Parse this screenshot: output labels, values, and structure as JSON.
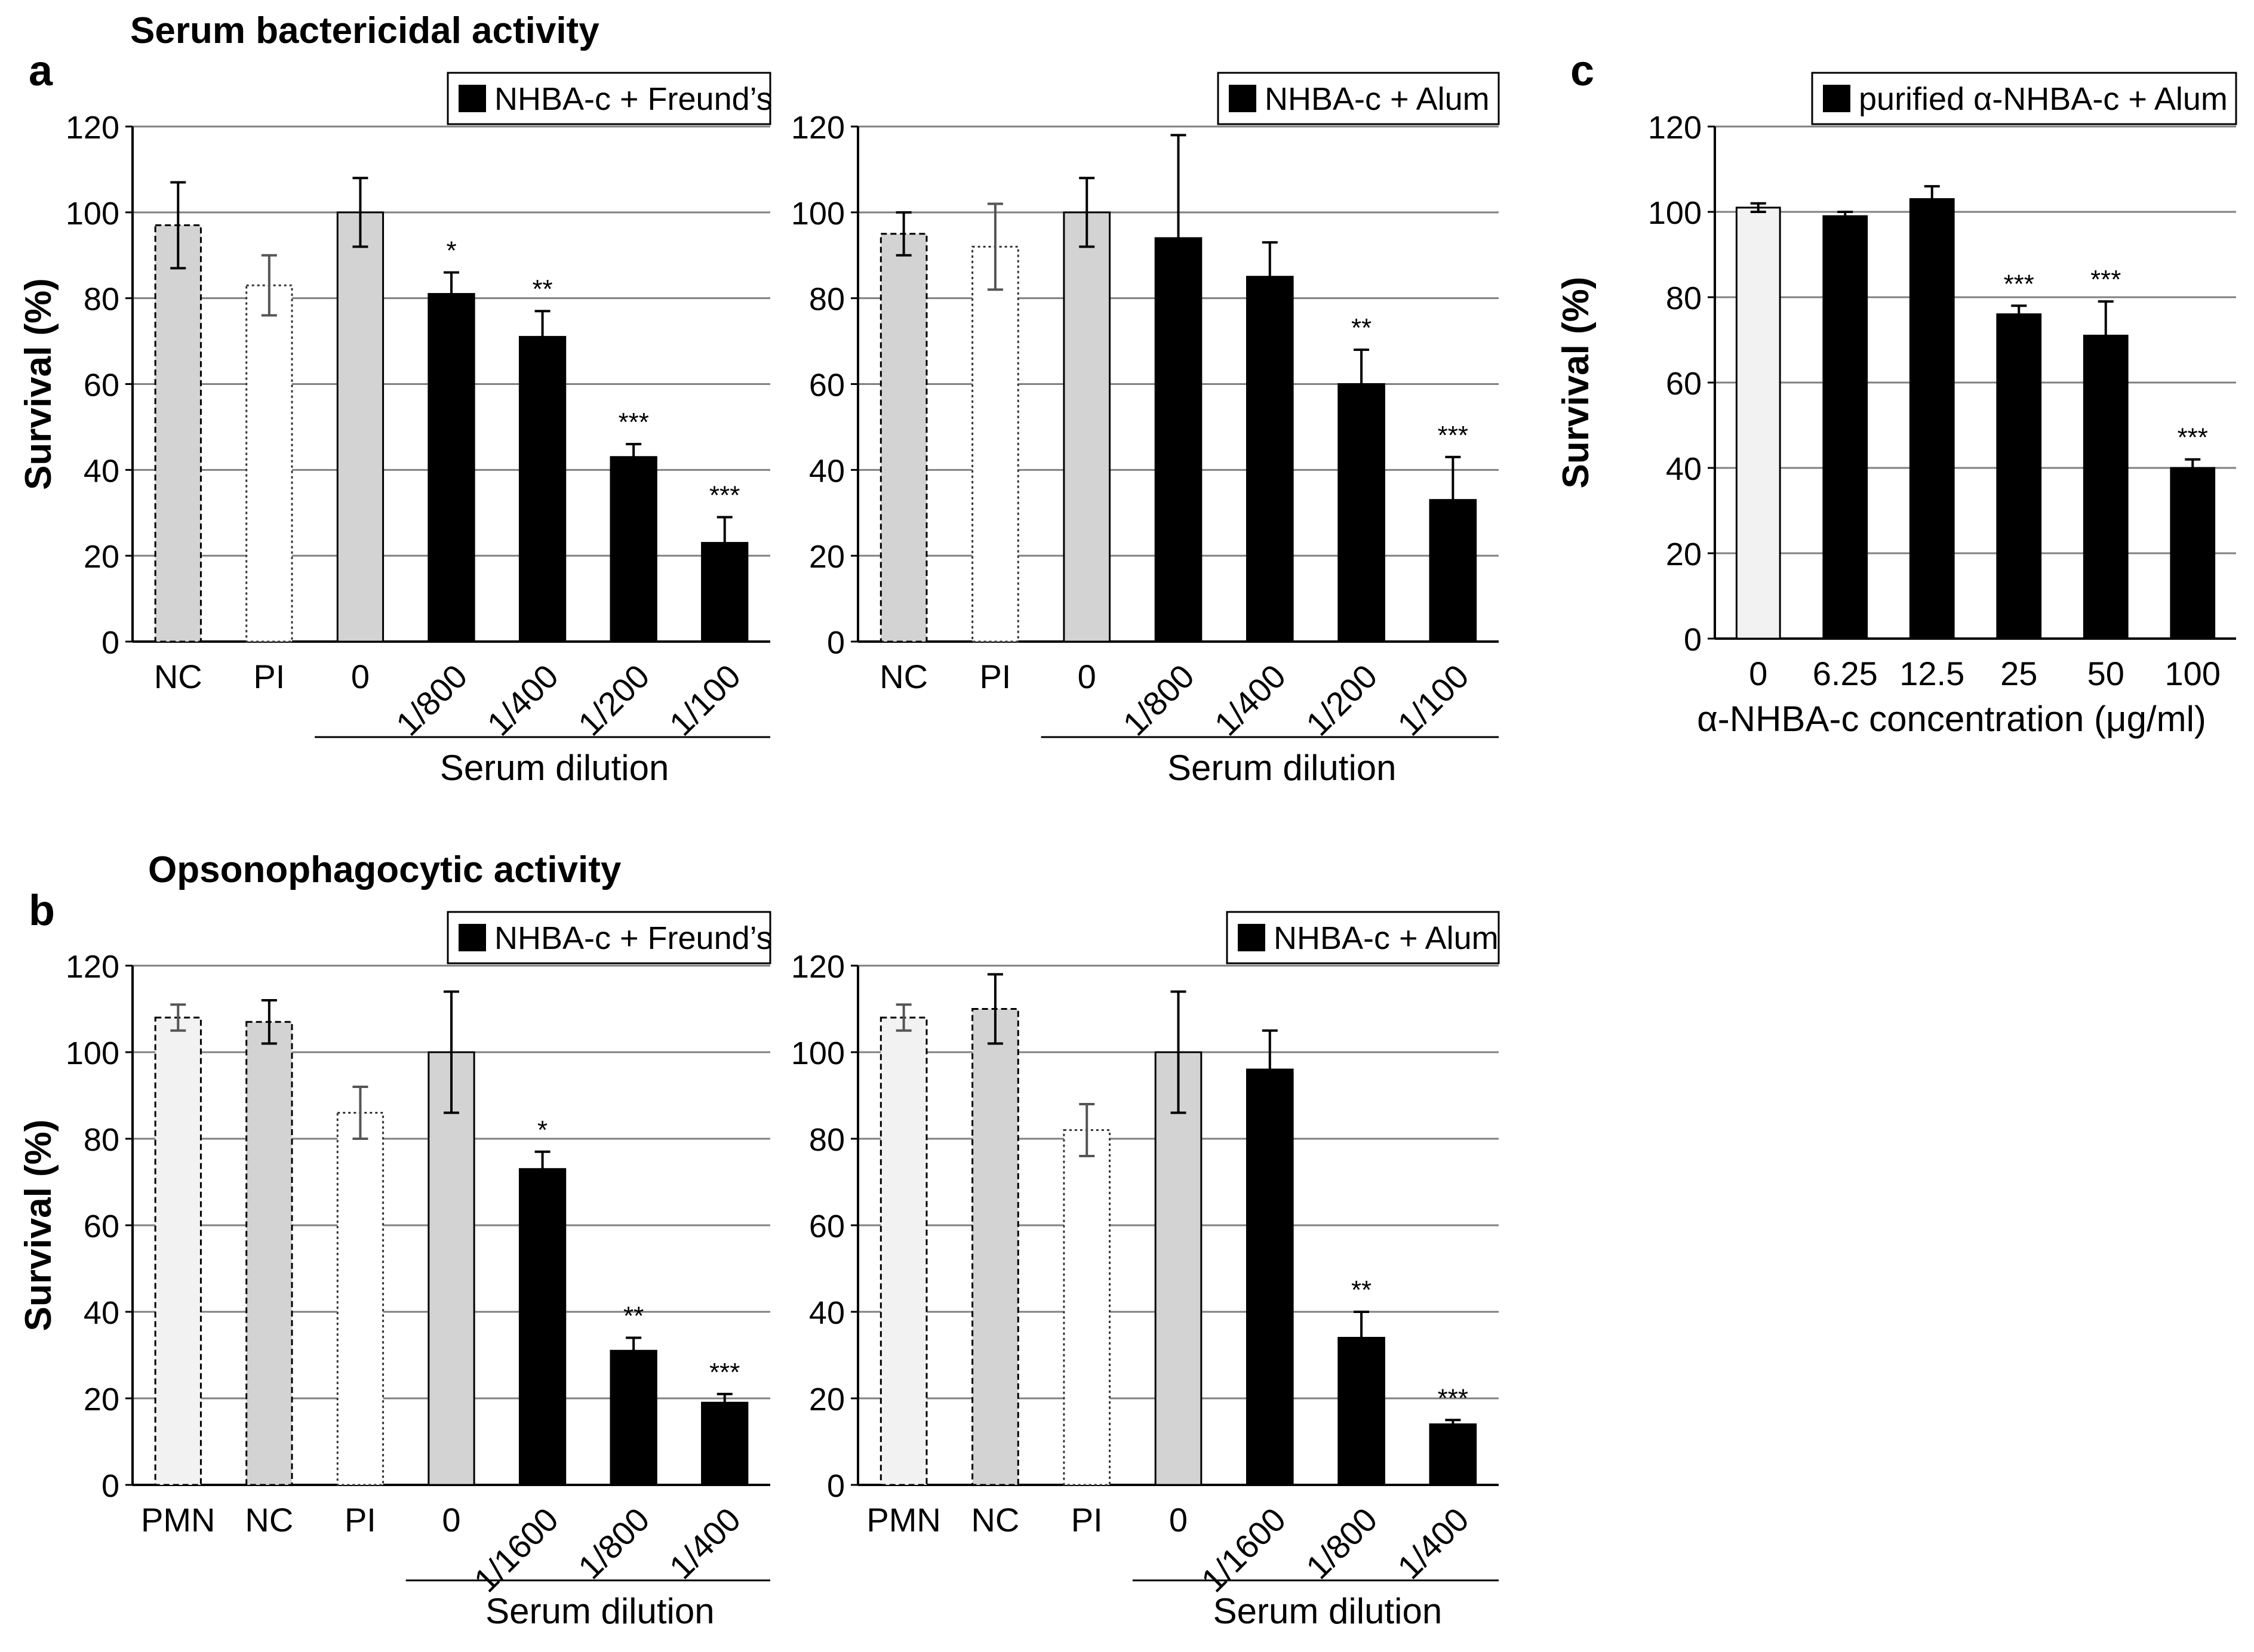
{
  "figure": {
    "section_a_title": "Serum bactericidal activity",
    "section_b_title": "Opsonophagocytic activity",
    "panel_labels": {
      "a": "a",
      "b": "b",
      "c": "c"
    }
  },
  "colors": {
    "bar_black": "#000000",
    "bar_grey": "#d3d3d3",
    "bar_white": "#ffffff",
    "bar_light": "#f2f2f2",
    "gridline": "#808080",
    "errorbar": "#000000"
  },
  "chart_data": [
    {
      "id": "a-left",
      "type": "bar",
      "title": "",
      "legend": "NHBA-c + Freund’s",
      "legend_placement": "top-right",
      "ylabel": "Survival (%)",
      "xlabel": "Serum dilution",
      "ylim": [
        0,
        120
      ],
      "yticks": [
        0,
        20,
        40,
        60,
        80,
        100,
        120
      ],
      "grid": true,
      "categories": [
        "NC",
        "PI",
        "0",
        "1/800",
        "1/400",
        "1/200",
        "1/100"
      ],
      "values": [
        97,
        83,
        100,
        81,
        71,
        43,
        23
      ],
      "errors": [
        10,
        7,
        8,
        5,
        6,
        3,
        6
      ],
      "significance": [
        "",
        "",
        "",
        "*",
        "**",
        "***",
        "***"
      ],
      "styles": [
        "grey-dashed",
        "white-dotted",
        "grey",
        "black",
        "black",
        "black",
        "black"
      ],
      "group_underline_start": 2
    },
    {
      "id": "a-right",
      "type": "bar",
      "title": "",
      "legend": "NHBA-c + Alum",
      "legend_placement": "top-right",
      "ylabel": "",
      "xlabel": "Serum dilution",
      "ylim": [
        0,
        120
      ],
      "yticks": [
        0,
        20,
        40,
        60,
        80,
        100,
        120
      ],
      "grid": true,
      "categories": [
        "NC",
        "PI",
        "0",
        "1/800",
        "1/400",
        "1/200",
        "1/100"
      ],
      "values": [
        95,
        92,
        100,
        94,
        85,
        60,
        33
      ],
      "errors": [
        5,
        10,
        8,
        24,
        8,
        8,
        10
      ],
      "significance": [
        "",
        "",
        "",
        "",
        "",
        "**",
        "***"
      ],
      "styles": [
        "grey-dashed",
        "white-dotted",
        "grey",
        "black",
        "black",
        "black",
        "black"
      ],
      "group_underline_start": 2
    },
    {
      "id": "c",
      "type": "bar",
      "title": "",
      "legend": "purified α-NHBA-c + Alum",
      "legend_placement": "top-right",
      "ylabel": "Survival (%)",
      "xlabel": "α-NHBA-c concentration (μg/ml)",
      "ylim": [
        0,
        120
      ],
      "yticks": [
        0,
        20,
        40,
        60,
        80,
        100,
        120
      ],
      "grid": true,
      "categories": [
        "0",
        "6.25",
        "12.5",
        "25",
        "50",
        "100"
      ],
      "values": [
        101,
        99,
        103,
        76,
        71,
        40
      ],
      "errors": [
        1,
        1,
        3,
        2,
        8,
        2
      ],
      "significance": [
        "",
        "",
        "",
        "***",
        "***",
        "***"
      ],
      "styles": [
        "light",
        "black",
        "black",
        "black",
        "black",
        "black"
      ],
      "group_underline_start": -1
    },
    {
      "id": "b-left",
      "type": "bar",
      "title": "",
      "legend": "NHBA-c + Freund’s",
      "legend_placement": "top-right",
      "ylabel": "Survival (%)",
      "xlabel": "Serum dilution",
      "ylim": [
        0,
        120
      ],
      "yticks": [
        0,
        20,
        40,
        60,
        80,
        100,
        120
      ],
      "grid": true,
      "categories": [
        "PMN",
        "NC",
        "PI",
        "0",
        "1/1600",
        "1/800",
        "1/400"
      ],
      "values": [
        108,
        107,
        86,
        100,
        73,
        31,
        19
      ],
      "errors": [
        3,
        5,
        6,
        14,
        4,
        3,
        2
      ],
      "significance": [
        "",
        "",
        "",
        "",
        "*",
        "**",
        "***"
      ],
      "styles": [
        "light-dashed",
        "grey-dashed",
        "white-dotted",
        "grey",
        "black",
        "black",
        "black"
      ],
      "group_underline_start": 3
    },
    {
      "id": "b-right",
      "type": "bar",
      "title": "",
      "legend": "NHBA-c + Alum",
      "legend_placement": "top-right",
      "ylabel": "",
      "xlabel": "Serum dilution",
      "ylim": [
        0,
        120
      ],
      "yticks": [
        0,
        20,
        40,
        60,
        80,
        100,
        120
      ],
      "grid": true,
      "categories": [
        "PMN",
        "NC",
        "PI",
        "0",
        "1/1600",
        "1/800",
        "1/400"
      ],
      "values": [
        108,
        110,
        82,
        100,
        96,
        34,
        14
      ],
      "errors": [
        3,
        8,
        6,
        14,
        9,
        6,
        1
      ],
      "significance": [
        "",
        "",
        "",
        "",
        "",
        "**",
        "***"
      ],
      "styles": [
        "light-dashed",
        "grey-dashed",
        "white-dotted",
        "grey",
        "black",
        "black",
        "black"
      ],
      "group_underline_start": 3
    }
  ]
}
